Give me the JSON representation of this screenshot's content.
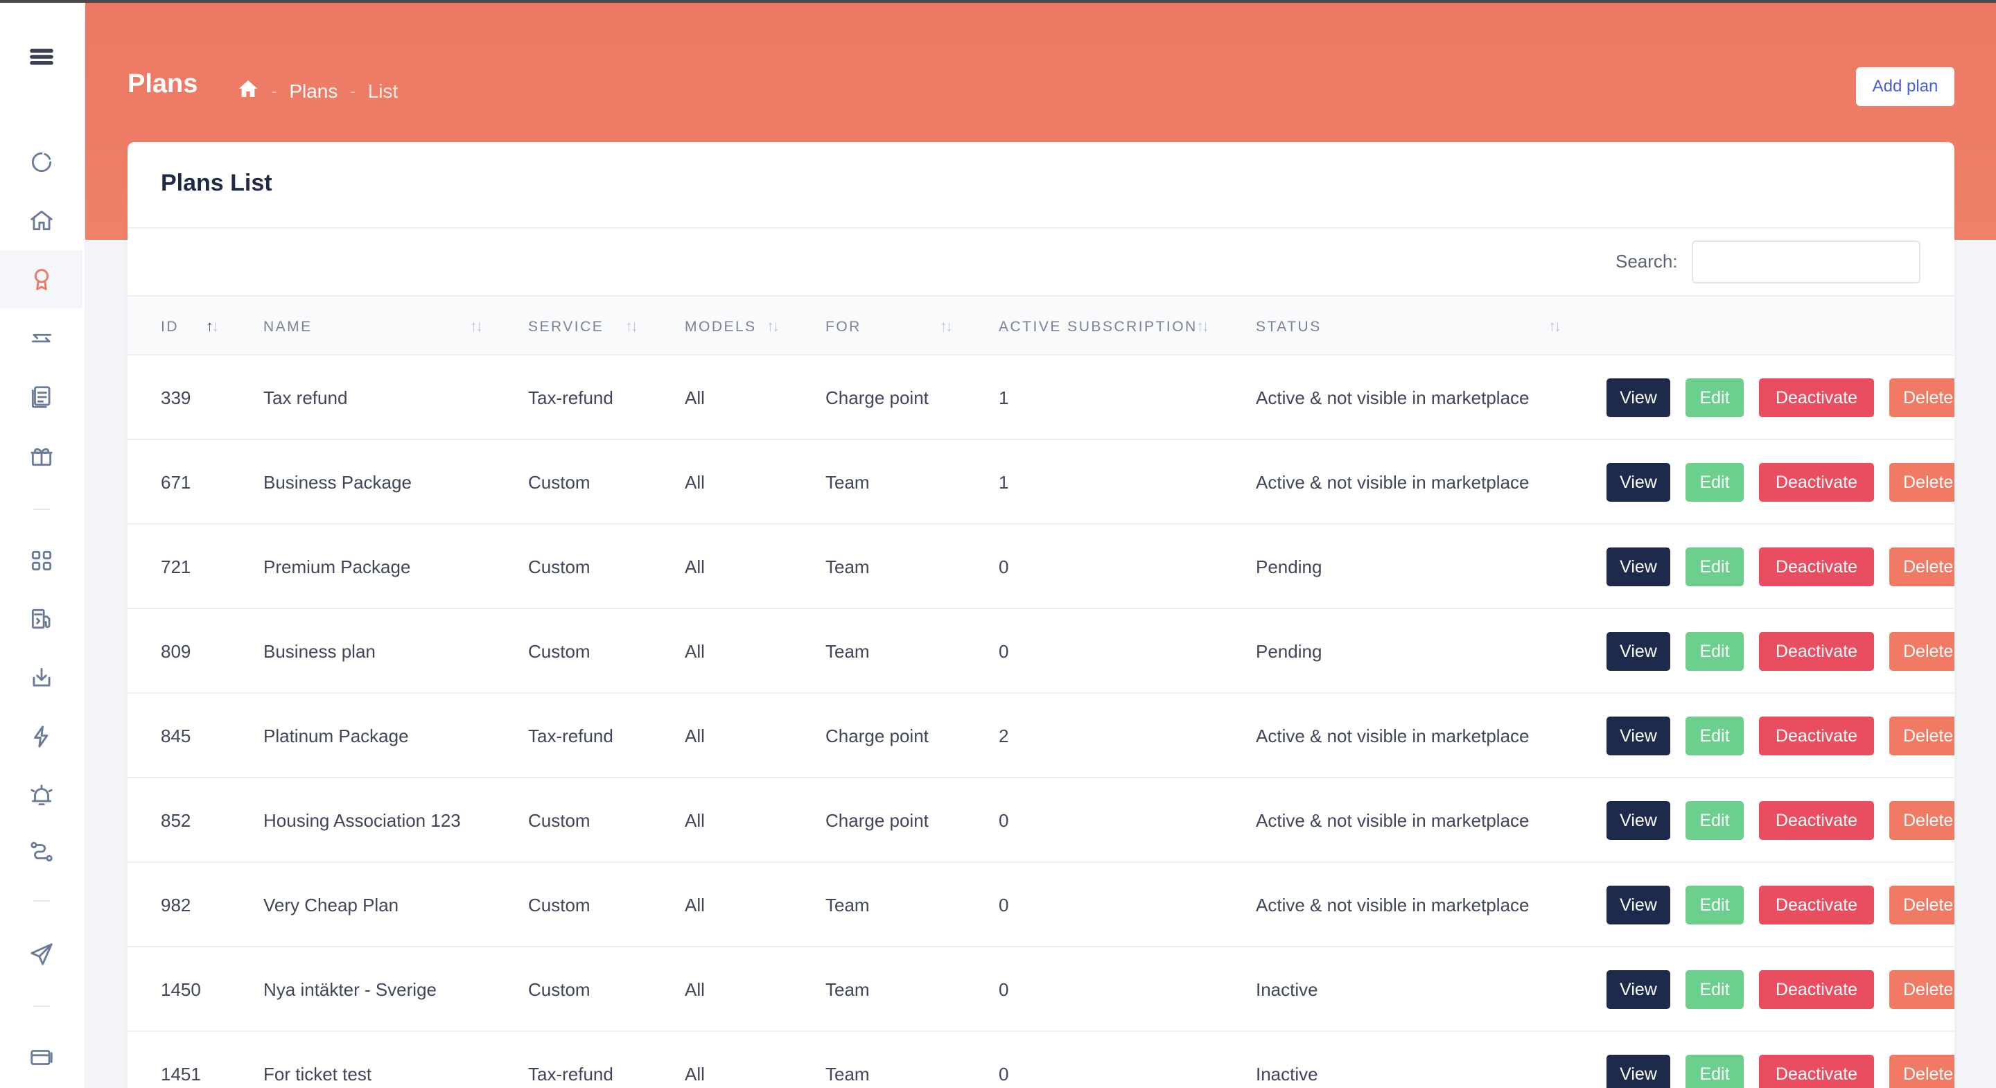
{
  "header": {
    "title": "Plans",
    "breadcrumb": [
      "Plans",
      "List"
    ],
    "add_button": "Add plan"
  },
  "sidebar": {
    "icons": [
      "menu-icon",
      "loader-icon",
      "home-icon",
      "award-icon",
      "transfer-icon",
      "documents-icon",
      "gift-icon",
      "grid-icon",
      "fuel-station-icon",
      "download-icon",
      "lightning-icon",
      "alarm-icon",
      "route-icon",
      "send-icon",
      "card-icon"
    ],
    "active": "award-icon"
  },
  "card": {
    "title": "Plans List",
    "search_label": "Search:",
    "search_value": ""
  },
  "table": {
    "columns": [
      "ID",
      "NAME",
      "SERVICE",
      "MODELS",
      "FOR",
      "ACTIVE SUBSCRIPTION",
      "STATUS"
    ],
    "actions": {
      "view": "View",
      "edit": "Edit",
      "deactivate": "Deactivate",
      "delete": "Delete"
    },
    "rows": [
      {
        "id": "339",
        "name": "Tax refund",
        "service": "Tax-refund",
        "models": "All",
        "for": "Charge point",
        "active_subscription": "1",
        "status": "Active & not visible in marketplace"
      },
      {
        "id": "671",
        "name": "Business Package",
        "service": "Custom",
        "models": "All",
        "for": "Team",
        "active_subscription": "1",
        "status": "Active & not visible in marketplace"
      },
      {
        "id": "721",
        "name": "Premium Package",
        "service": "Custom",
        "models": "All",
        "for": "Team",
        "active_subscription": "0",
        "status": "Pending"
      },
      {
        "id": "809",
        "name": "Business plan",
        "service": "Custom",
        "models": "All",
        "for": "Team",
        "active_subscription": "0",
        "status": "Pending"
      },
      {
        "id": "845",
        "name": "Platinum Package",
        "service": "Tax-refund",
        "models": "All",
        "for": "Charge point",
        "active_subscription": "2",
        "status": "Active & not visible in marketplace"
      },
      {
        "id": "852",
        "name": "Housing Association 123",
        "service": "Custom",
        "models": "All",
        "for": "Charge point",
        "active_subscription": "0",
        "status": "Active & not visible in marketplace"
      },
      {
        "id": "982",
        "name": "Very Cheap Plan",
        "service": "Custom",
        "models": "All",
        "for": "Team",
        "active_subscription": "0",
        "status": "Active & not visible in marketplace"
      },
      {
        "id": "1450",
        "name": "Nya intäkter - Sverige",
        "service": "Custom",
        "models": "All",
        "for": "Team",
        "active_subscription": "0",
        "status": "Inactive"
      },
      {
        "id": "1451",
        "name": "For ticket test",
        "service": "Tax-refund",
        "models": "All",
        "for": "Team",
        "active_subscription": "0",
        "status": "Inactive"
      }
    ]
  },
  "colors": {
    "accent": "#ec7864",
    "view": "#1e2a4c",
    "edit": "#6ccf8e",
    "deactivate": "#e94d60",
    "delete": "#f07a64",
    "link": "#4a60d8"
  }
}
